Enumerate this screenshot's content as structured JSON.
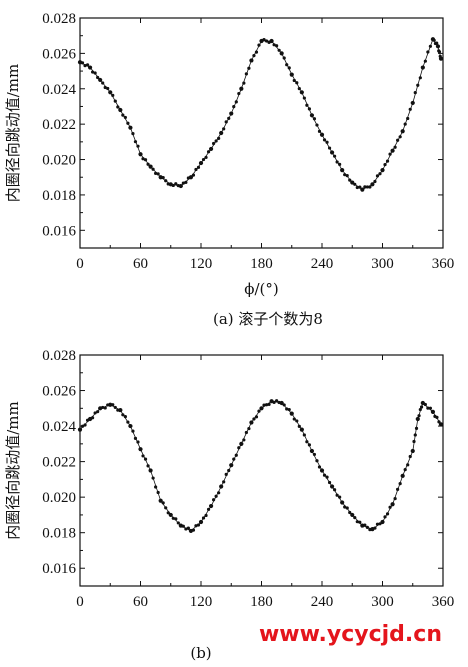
{
  "chart_data": [
    {
      "type": "scatter",
      "xlabel": "ϕ/(°)",
      "ylabel": "内圈径向跳动值/mm",
      "xlim": [
        0,
        360
      ],
      "ylim": [
        0.015,
        0.028
      ],
      "xticks": [
        0,
        60,
        120,
        180,
        240,
        300,
        360
      ],
      "yticks": [
        0.016,
        0.018,
        0.02,
        0.022,
        0.024,
        0.026,
        0.028
      ],
      "ytick_labels": [
        "0.016",
        "0.018",
        "0.020",
        "0.022",
        "0.024",
        "0.026",
        "0.028"
      ],
      "caption": "(a) 滚子个数为8",
      "series": [
        {
          "points": [
            [
              0,
              0.0255
            ],
            [
              10,
              0.0252
            ],
            [
              20,
              0.0245
            ],
            [
              30,
              0.0238
            ],
            [
              40,
              0.0228
            ],
            [
              50,
              0.0218
            ],
            [
              60,
              0.0203
            ],
            [
              70,
              0.0196
            ],
            [
              80,
              0.019
            ],
            [
              90,
              0.0186
            ],
            [
              100,
              0.0185
            ],
            [
              110,
              0.019
            ],
            [
              120,
              0.0198
            ],
            [
              130,
              0.0206
            ],
            [
              140,
              0.0215
            ],
            [
              150,
              0.0226
            ],
            [
              160,
              0.024
            ],
            [
              170,
              0.0256
            ],
            [
              180,
              0.0267
            ],
            [
              190,
              0.0267
            ],
            [
              200,
              0.026
            ],
            [
              210,
              0.0248
            ],
            [
              220,
              0.0238
            ],
            [
              230,
              0.0225
            ],
            [
              240,
              0.0214
            ],
            [
              250,
              0.0204
            ],
            [
              260,
              0.0194
            ],
            [
              270,
              0.0187
            ],
            [
              280,
              0.0183
            ],
            [
              290,
              0.0186
            ],
            [
              300,
              0.0194
            ],
            [
              310,
              0.0205
            ],
            [
              320,
              0.0216
            ],
            [
              330,
              0.0232
            ],
            [
              340,
              0.0252
            ],
            [
              350,
              0.0268
            ],
            [
              355,
              0.0264
            ],
            [
              358,
              0.0257
            ]
          ]
        }
      ]
    },
    {
      "type": "scatter",
      "xlabel": "",
      "ylabel": "内圈径向跳动值/mm",
      "xlim": [
        0,
        360
      ],
      "ylim": [
        0.015,
        0.028
      ],
      "xticks": [
        0,
        60,
        120,
        180,
        240,
        300,
        360
      ],
      "yticks": [
        0.016,
        0.018,
        0.02,
        0.022,
        0.024,
        0.026,
        0.028
      ],
      "ytick_labels": [
        "0.016",
        "0.018",
        "0.020",
        "0.022",
        "0.024",
        "0.026",
        "0.028"
      ],
      "caption": "(b)",
      "series": [
        {
          "points": [
            [
              0,
              0.0238
            ],
            [
              10,
              0.0244
            ],
            [
              20,
              0.025
            ],
            [
              30,
              0.0252
            ],
            [
              40,
              0.0249
            ],
            [
              50,
              0.024
            ],
            [
              60,
              0.0227
            ],
            [
              70,
              0.0215
            ],
            [
              80,
              0.0198
            ],
            [
              90,
              0.019
            ],
            [
              100,
              0.0184
            ],
            [
              110,
              0.0181
            ],
            [
              120,
              0.0186
            ],
            [
              130,
              0.0195
            ],
            [
              140,
              0.0206
            ],
            [
              150,
              0.0218
            ],
            [
              160,
              0.023
            ],
            [
              170,
              0.0242
            ],
            [
              180,
              0.025
            ],
            [
              190,
              0.0254
            ],
            [
              200,
              0.0253
            ],
            [
              210,
              0.0247
            ],
            [
              220,
              0.0238
            ],
            [
              230,
              0.0226
            ],
            [
              240,
              0.0215
            ],
            [
              250,
              0.0206
            ],
            [
              260,
              0.0197
            ],
            [
              270,
              0.019
            ],
            [
              280,
              0.0184
            ],
            [
              290,
              0.0182
            ],
            [
              300,
              0.0186
            ],
            [
              310,
              0.0196
            ],
            [
              320,
              0.0212
            ],
            [
              330,
              0.0226
            ],
            [
              335,
              0.0244
            ],
            [
              340,
              0.0253
            ],
            [
              350,
              0.0248
            ],
            [
              358,
              0.0241
            ]
          ]
        }
      ]
    }
  ],
  "watermark": "www.ycycjd.cn",
  "colors": {
    "marker": "#111111",
    "watermark": "#e4151c"
  }
}
